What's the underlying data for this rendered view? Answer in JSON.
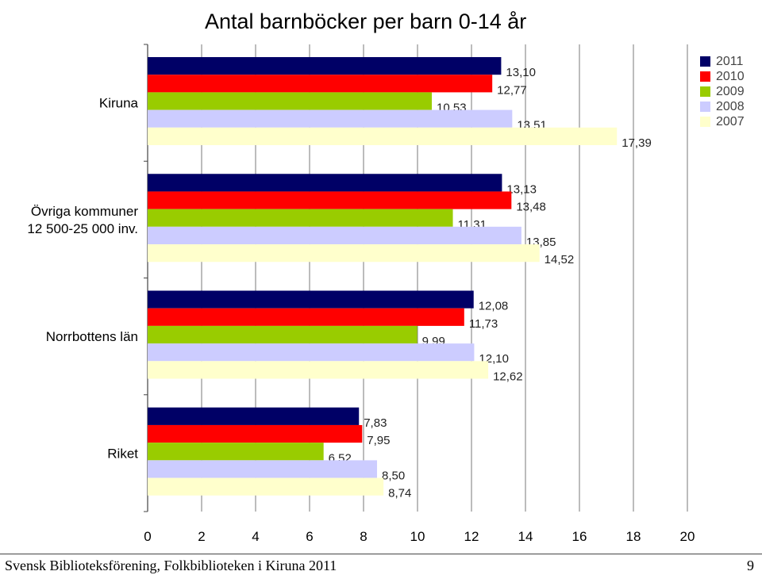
{
  "chart_data": {
    "type": "bar",
    "orientation": "horizontal",
    "title": "Antal barnböcker per barn 0-14 år",
    "categories": [
      "Kiruna",
      "Övriga kommuner 12 500-25 000 inv.",
      "Norrbottens län",
      "Riket"
    ],
    "category_lines": [
      [
        "Kiruna"
      ],
      [
        "Övriga kommuner",
        "12 500-25 000 inv."
      ],
      [
        "Norrbottens län"
      ],
      [
        "Riket"
      ]
    ],
    "series": [
      {
        "name": "2011",
        "color": "#000066",
        "values": [
          13.1,
          13.13,
          12.08,
          7.83
        ],
        "labels": [
          "13,10",
          "13,13",
          "12,08",
          "7,83"
        ]
      },
      {
        "name": "2010",
        "color": "#ff0000",
        "values": [
          12.77,
          13.48,
          11.73,
          7.95
        ],
        "labels": [
          "12,77",
          "13,48",
          "11,73",
          "7,95"
        ]
      },
      {
        "name": "2009",
        "color": "#99cc00",
        "values": [
          10.53,
          11.31,
          9.99,
          6.52
        ],
        "labels": [
          "10,53",
          "11,31",
          "9,99",
          "6,52"
        ]
      },
      {
        "name": "2008",
        "color": "#ccccff",
        "values": [
          13.51,
          13.85,
          12.1,
          8.5
        ],
        "labels": [
          "13,51",
          "13,85",
          "12,10",
          "8,50"
        ]
      },
      {
        "name": "2007",
        "color": "#ffffcc",
        "values": [
          17.39,
          14.52,
          12.62,
          8.74
        ],
        "labels": [
          "17,39",
          "14,52",
          "12,62",
          "8,74"
        ]
      }
    ],
    "xlim": [
      0,
      20
    ],
    "xticks": [
      0,
      2,
      4,
      6,
      8,
      10,
      12,
      14,
      16,
      18,
      20
    ],
    "grid": "vertical",
    "legend": "top-right"
  },
  "footer": {
    "left": "Svensk Biblioteksförening, Folkbiblioteken i Kiruna 2011",
    "right": "9"
  }
}
